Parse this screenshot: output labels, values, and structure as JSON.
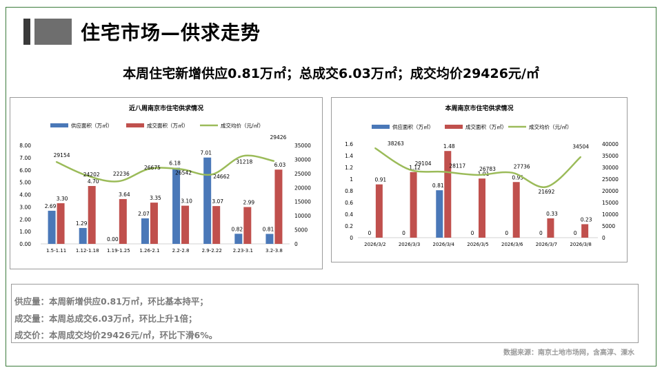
{
  "page": {
    "title": "住宅市场—供求走势",
    "headline": "本周住宅新增供应0.81万㎡；总成交6.03万㎡；成交均价29426元/㎡",
    "summary": [
      "供应量：本周新增供应0.81万㎡，环比基本持平；",
      "成交量：本周总成交6.03万㎡，环比上升1倍；",
      "成交价：本周成交均价29426元/㎡，环比下滑6%。"
    ],
    "source": "数据来源：南京土地市场网，含高淳、溧水"
  },
  "colors": {
    "supply": "#4a78b8",
    "deal": "#c0504d",
    "price": "#9bbb59"
  },
  "chart_data": [
    {
      "type": "bar",
      "title": "近八周南京市住宅供求情况",
      "categories": [
        "1.5-1.11",
        "1.12-1.18",
        "1.19-1.25",
        "1.26-2.1",
        "2.2-2.8",
        "2.9-2.22",
        "2.23-3.1",
        "3.2-3.8"
      ],
      "series": [
        {
          "name": "供应面积（万㎡）",
          "type": "bar",
          "axis": "left",
          "values": [
            2.69,
            1.29,
            0.0,
            2.07,
            6.18,
            7.01,
            0.82,
            0.81
          ],
          "labels": [
            "2.69",
            "1.29",
            "0.00",
            "2.07",
            "6.18",
            "7.01",
            "0.82",
            "0.81"
          ]
        },
        {
          "name": "成交面积（万㎡）",
          "type": "bar",
          "axis": "left",
          "values": [
            3.3,
            4.7,
            3.64,
            3.35,
            3.1,
            3.07,
            2.99,
            6.03
          ],
          "labels": [
            "3.30",
            "4.70",
            "3.64",
            "3.35",
            "3.10",
            "3.07",
            "2.99",
            "6.03"
          ]
        },
        {
          "name": "成交均价（元/㎡）",
          "type": "line",
          "axis": "right",
          "values": [
            29154,
            24202,
            22236,
            26675,
            26542,
            24662,
            31218,
            29426
          ],
          "labels": [
            "29154",
            "24202",
            "22236",
            "26675",
            "26542",
            "24662",
            "31218",
            "29426"
          ]
        }
      ],
      "y_left": {
        "min": 0,
        "max": 8,
        "step": 1,
        "tick_labels": [
          "0.00",
          "1.00",
          "2.00",
          "3.00",
          "4.00",
          "5.00",
          "6.00",
          "7.00",
          "8.00"
        ]
      },
      "y_right": {
        "min": 0,
        "max": 35000,
        "step": 5000,
        "tick_labels": [
          "0",
          "5000",
          "10000",
          "15000",
          "20000",
          "25000",
          "30000",
          "35000"
        ]
      },
      "legend": "top"
    },
    {
      "type": "bar",
      "title": "本周南京市住宅供求情况",
      "categories": [
        "2026/3/2",
        "2026/3/3",
        "2026/3/4",
        "2026/3/5",
        "2026/3/6",
        "2026/3/7",
        "2026/3/8"
      ],
      "series": [
        {
          "name": "供应面积（万㎡）",
          "type": "bar",
          "axis": "left",
          "values": [
            0,
            0,
            0.81,
            0,
            0,
            0,
            0
          ],
          "labels": [
            "0",
            "0",
            "0.81",
            "0",
            "0",
            "0",
            "0"
          ]
        },
        {
          "name": "成交面积（万㎡）",
          "type": "bar",
          "axis": "left",
          "values": [
            0.91,
            1.12,
            1.48,
            1.01,
            0.95,
            0.33,
            0.23
          ],
          "labels": [
            "0.91",
            "1.12",
            "1.48",
            "1.01",
            "0.95",
            "0.33",
            "0.23"
          ]
        },
        {
          "name": "成交均价（元/㎡）",
          "type": "line",
          "axis": "right",
          "values": [
            38263,
            29104,
            28117,
            26783,
            27736,
            21692,
            34504
          ],
          "labels": [
            "38263",
            "29104",
            "28117",
            "26783",
            "27736",
            "21692",
            "34504"
          ]
        }
      ],
      "y_left": {
        "min": 0,
        "max": 1.6,
        "step": 0.2,
        "tick_labels": [
          "0",
          "0.2",
          "0.4",
          "0.6",
          "0.8",
          "1",
          "1.2",
          "1.4",
          "1.6"
        ]
      },
      "y_right": {
        "min": 0,
        "max": 40000,
        "step": 5000,
        "tick_labels": [
          "0",
          "5000",
          "10000",
          "15000",
          "20000",
          "25000",
          "30000",
          "35000",
          "40000"
        ]
      },
      "legend": "top"
    }
  ]
}
